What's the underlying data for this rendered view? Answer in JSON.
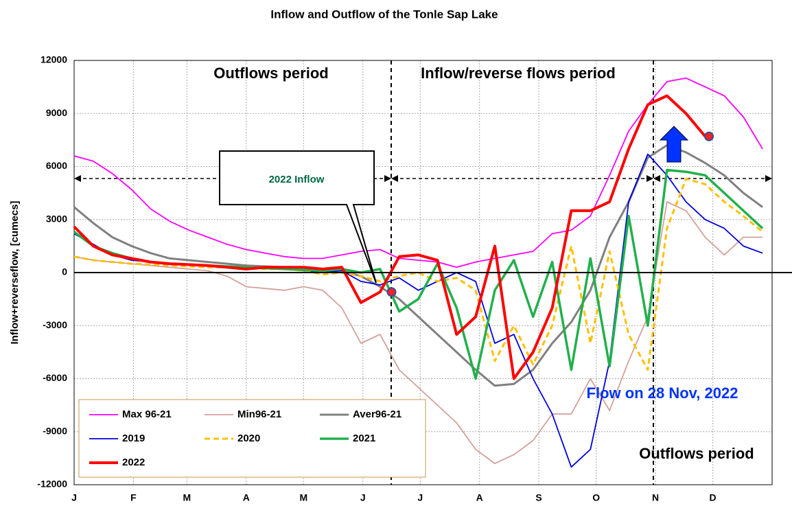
{
  "chart_data": {
    "type": "line",
    "title": "Inflow and Outflow of the Tonle Sap Lake",
    "y_label": "Inflow+reverseflow, [cumecs]",
    "xlim": [
      0,
      365
    ],
    "xticks": [
      {
        "value": 0,
        "label": "J"
      },
      {
        "value": 31,
        "label": "F"
      },
      {
        "value": 59,
        "label": "M"
      },
      {
        "value": 90,
        "label": "A"
      },
      {
        "value": 120,
        "label": "M"
      },
      {
        "value": 151,
        "label": "J"
      },
      {
        "value": 181,
        "label": "J"
      },
      {
        "value": 212,
        "label": "A"
      },
      {
        "value": 243,
        "label": "S"
      },
      {
        "value": 273,
        "label": "O"
      },
      {
        "value": 304,
        "label": "N"
      },
      {
        "value": 334,
        "label": "D"
      },
      {
        "value": 365,
        "label": ""
      }
    ],
    "ylim": [
      -12000,
      12000
    ],
    "yticks": [
      -12000,
      -9000,
      -6000,
      -3000,
      0,
      3000,
      6000,
      9000,
      12000
    ],
    "grid": true,
    "x": [
      0,
      10,
      20,
      30,
      40,
      50,
      60,
      70,
      80,
      90,
      100,
      110,
      120,
      130,
      140,
      150,
      160,
      170,
      180,
      190,
      200,
      210,
      220,
      230,
      240,
      250,
      260,
      270,
      280,
      290,
      300,
      310,
      320,
      330,
      340,
      350,
      360
    ],
    "series": [
      {
        "name": "Max 96-21",
        "color": "#ff00ff",
        "width": 1.8,
        "values": [
          6600,
          6300,
          5600,
          4700,
          3600,
          2900,
          2400,
          2000,
          1600,
          1300,
          1100,
          900,
          800,
          800,
          1000,
          1200,
          1300,
          800,
          700,
          600,
          300,
          600,
          800,
          1000,
          1200,
          2200,
          2400,
          3200,
          5500,
          8000,
          9500,
          10800,
          11000,
          10500,
          10000,
          8800,
          7000
        ]
      },
      {
        "name": "Min96-21",
        "color": "#d4a09a",
        "width": 1.8,
        "values": [
          900,
          700,
          600,
          500,
          400,
          300,
          200,
          100,
          -200,
          -800,
          -900,
          -1000,
          -800,
          -1000,
          -2000,
          -4000,
          -3500,
          -5500,
          -6500,
          -7500,
          -8500,
          -10000,
          -10800,
          -10300,
          -9500,
          -8000,
          -8000,
          -6000,
          -7800,
          -5000,
          -2500,
          4000,
          3500,
          2000,
          1000,
          2000,
          2000
        ]
      },
      {
        "name": "Aver96-21",
        "color": "#808080",
        "width": 3,
        "values": [
          3700,
          2800,
          2000,
          1500,
          1100,
          800,
          700,
          600,
          500,
          400,
          350,
          300,
          250,
          200,
          100,
          -200,
          -800,
          -1500,
          -2500,
          -3500,
          -4500,
          -5500,
          -6400,
          -6300,
          -5500,
          -4000,
          -2800,
          -1000,
          2000,
          4000,
          6500,
          7200,
          6800,
          6200,
          5500,
          4500,
          3700
        ]
      },
      {
        "name": "2019",
        "color": "#0000dd",
        "width": 1.8,
        "values": [
          2200,
          1600,
          1000,
          700,
          600,
          500,
          450,
          400,
          350,
          300,
          300,
          200,
          100,
          0,
          100,
          -500,
          -700,
          -300,
          -1000,
          -500,
          0,
          -500,
          -4000,
          -3500,
          -6000,
          -8000,
          -11000,
          -10000,
          -5000,
          4000,
          6700,
          5500,
          4000,
          3000,
          2500,
          1500,
          1100
        ]
      },
      {
        "name": "2020",
        "color": "#ffc000",
        "width": 3,
        "style": "dashed",
        "values": [
          900,
          700,
          600,
          500,
          450,
          400,
          350,
          300,
          300,
          250,
          200,
          200,
          100,
          -100,
          0,
          -200,
          -500,
          -200,
          0,
          -500,
          -300,
          -1000,
          -5000,
          -3000,
          -5200,
          -3000,
          1500,
          -4000,
          1200,
          -3500,
          -5500,
          2500,
          5300,
          5000,
          4000,
          3200,
          2300
        ]
      },
      {
        "name": "2021",
        "color": "#22b04c",
        "width": 3.5,
        "values": [
          2300,
          1500,
          1100,
          800,
          600,
          500,
          450,
          400,
          350,
          300,
          250,
          200,
          150,
          100,
          200,
          0,
          200,
          -2200,
          -1500,
          500,
          -2000,
          -6000,
          -1000,
          700,
          -2500,
          600,
          -5500,
          800,
          -5300,
          3200,
          -3000,
          5800,
          5700,
          5500,
          4500,
          3500,
          2500
        ]
      },
      {
        "name": "2022",
        "color": "#ff0000",
        "width": 4,
        "values": [
          2600,
          1500,
          1000,
          800,
          600,
          500,
          450,
          400,
          300,
          200,
          300,
          300,
          300,
          200,
          300,
          -1700,
          -1100,
          900,
          1000,
          700,
          -3500,
          -2500,
          1500,
          -6000,
          -4500,
          -2000,
          3500,
          3500,
          4000,
          7000,
          9500,
          10000,
          9000,
          7700,
          null,
          null,
          null
        ]
      }
    ],
    "points": [
      {
        "x": 166,
        "y": -1100
      },
      {
        "x": 332,
        "y": 7700
      }
    ],
    "annotations": [
      "Outflows period",
      "Inflow/reverse flows period",
      "Outflows period",
      "2022 Inflow",
      "Flow on 28 Nov, 2022"
    ]
  }
}
